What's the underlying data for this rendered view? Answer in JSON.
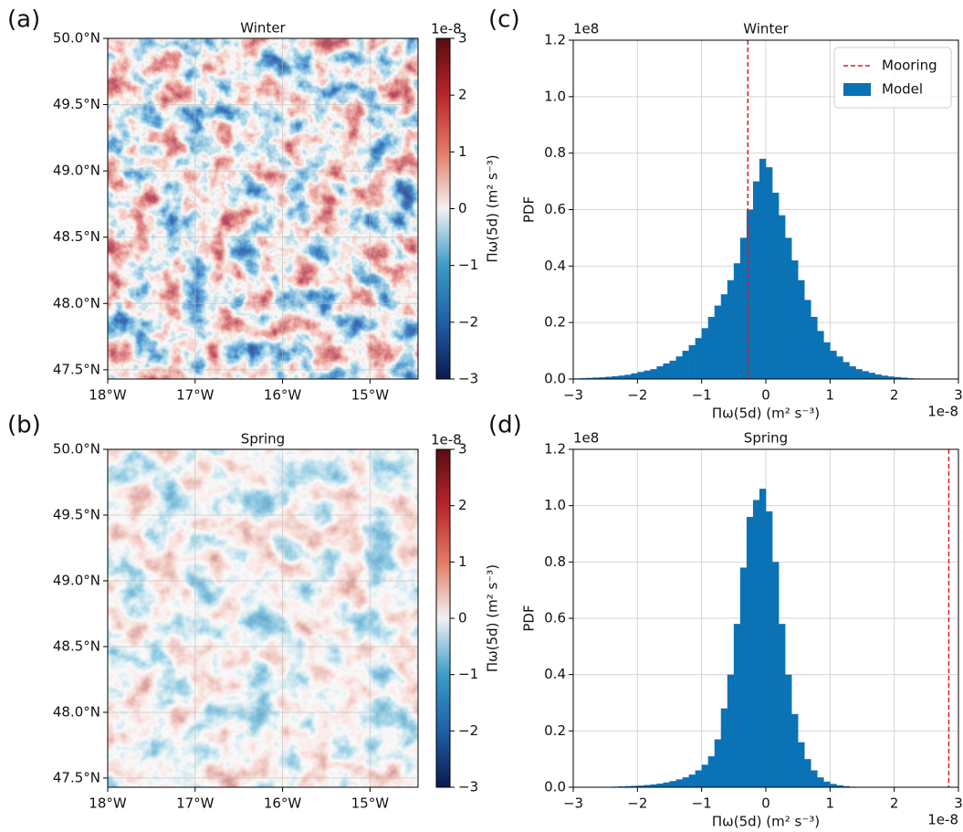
{
  "chart_data": [
    {
      "type": "heatmap",
      "panel_label": "(a)",
      "title": "Winter",
      "xlim": [
        -18,
        -14.45
      ],
      "ylim": [
        47.43,
        50.0
      ],
      "xticks": [
        {
          "value": -18,
          "label": "18°W"
        },
        {
          "value": -17,
          "label": "17°W"
        },
        {
          "value": -16,
          "label": "16°W"
        },
        {
          "value": -15,
          "label": "15°W"
        }
      ],
      "yticks": [
        {
          "value": 47.5,
          "label": "47.5°N"
        },
        {
          "value": 48.0,
          "label": "48.0°N"
        },
        {
          "value": 48.5,
          "label": "48.5°N"
        },
        {
          "value": 49.0,
          "label": "49.0°N"
        },
        {
          "value": 49.5,
          "label": "49.5°N"
        },
        {
          "value": 50.0,
          "label": "50.0°N"
        }
      ],
      "grid": true,
      "colorbar": {
        "lim": [
          -3,
          3
        ],
        "ticks": [
          {
            "value": -3,
            "label": "−3"
          },
          {
            "value": -2,
            "label": "−2"
          },
          {
            "value": -1,
            "label": "−1"
          },
          0,
          1,
          2,
          3
        ],
        "offset_label": "1e-8",
        "label": "Πω(5d) (m² s⁻³)",
        "colors": [
          "#0c1a4f",
          "#1f5fa8",
          "#3a9cc7",
          "#f2f2f2",
          "#e47a63",
          "#b8262b",
          "#5a0c12"
        ]
      }
    },
    {
      "type": "heatmap",
      "panel_label": "(b)",
      "title": "Spring",
      "xlim": [
        -18,
        -14.45
      ],
      "ylim": [
        47.43,
        50.0
      ],
      "xticks": [
        {
          "value": -18,
          "label": "18°W"
        },
        {
          "value": -17,
          "label": "17°W"
        },
        {
          "value": -16,
          "label": "16°W"
        },
        {
          "value": -15,
          "label": "15°W"
        }
      ],
      "yticks": [
        {
          "value": 47.5,
          "label": "47.5°N"
        },
        {
          "value": 48.0,
          "label": "48.0°N"
        },
        {
          "value": 48.5,
          "label": "48.5°N"
        },
        {
          "value": 49.0,
          "label": "49.0°N"
        },
        {
          "value": 49.5,
          "label": "49.5°N"
        },
        {
          "value": 50.0,
          "label": "50.0°N"
        }
      ],
      "grid": true,
      "colorbar": {
        "lim": [
          -3,
          3
        ],
        "ticks": [
          {
            "value": -3,
            "label": "−3"
          },
          {
            "value": -2,
            "label": "−2"
          },
          {
            "value": -1,
            "label": "−1"
          },
          0,
          1,
          2,
          3
        ],
        "offset_label": "1e-8",
        "label": "Πω(5d) (m² s⁻³)",
        "colors": [
          "#0c1a4f",
          "#1f5fa8",
          "#3a9cc7",
          "#f2f2f2",
          "#e47a63",
          "#b8262b",
          "#5a0c12"
        ]
      }
    },
    {
      "type": "histogram",
      "panel_label": "(c)",
      "title": "Winter",
      "xlabel": "Πω(5d) (m² s⁻³)",
      "ylabel": "PDF",
      "x_offset_label": "1e-8",
      "y_offset_label": "1e8",
      "xlim": [
        -3,
        3
      ],
      "ylim": [
        0,
        1.2
      ],
      "xticks": [
        {
          "value": -3,
          "label": "−3"
        },
        {
          "value": -2,
          "label": "−2"
        },
        {
          "value": -1,
          "label": "−1"
        },
        0,
        1,
        2,
        3
      ],
      "yticks": [
        {
          "value": 0,
          "label": "0.0"
        },
        0.2,
        0.4,
        0.6,
        0.8,
        {
          "value": 1,
          "label": "1.0"
        },
        1.2
      ],
      "grid": true,
      "legend": "upper right",
      "bins": [
        -3,
        -2.9,
        -2.8,
        -2.7,
        -2.6,
        -2.5,
        -2.4,
        -2.3,
        -2.2,
        -2.1,
        -2,
        -1.9,
        -1.8,
        -1.7,
        -1.6,
        -1.5,
        -1.4,
        -1.3,
        -1.2,
        -1.1,
        -1,
        -0.9,
        -0.8,
        -0.7,
        -0.6,
        -0.5,
        -0.4,
        -0.3,
        -0.2,
        -0.1,
        0,
        0.1,
        0.2,
        0.3,
        0.4,
        0.5,
        0.6,
        0.7,
        0.8,
        0.9,
        1,
        1.1,
        1.2,
        1.3,
        1.4,
        1.5,
        1.6,
        1.7,
        1.8,
        1.9,
        2,
        2.1,
        2.2,
        2.3,
        2.4,
        2.5,
        2.6,
        2.7,
        2.8,
        2.9,
        3
      ],
      "series": [
        {
          "name": "Model",
          "color": "#0a72b5",
          "values": [
            0.002,
            0.003,
            0.004,
            0.005,
            0.006,
            0.008,
            0.01,
            0.012,
            0.015,
            0.02,
            0.025,
            0.03,
            0.035,
            0.045,
            0.055,
            0.065,
            0.08,
            0.1,
            0.12,
            0.145,
            0.18,
            0.22,
            0.26,
            0.3,
            0.35,
            0.41,
            0.5,
            0.6,
            0.7,
            0.78,
            0.75,
            0.66,
            0.58,
            0.5,
            0.42,
            0.35,
            0.28,
            0.22,
            0.17,
            0.13,
            0.1,
            0.08,
            0.06,
            0.045,
            0.035,
            0.028,
            0.022,
            0.016,
            0.012,
            0.009,
            0.007,
            0.005,
            0.003,
            0.002,
            0,
            0,
            0,
            0,
            0,
            0
          ]
        }
      ],
      "lines": [
        {
          "name": "Mooring",
          "color": "#e41a1c",
          "x": -0.28
        }
      ]
    },
    {
      "type": "histogram",
      "panel_label": "(d)",
      "title": "Spring",
      "xlabel": "Πω(5d) (m² s⁻³)",
      "ylabel": "PDF",
      "x_offset_label": "1e-8",
      "y_offset_label": "1e8",
      "xlim": [
        -3,
        3
      ],
      "ylim": [
        0,
        1.2
      ],
      "xticks": [
        {
          "value": -3,
          "label": "−3"
        },
        {
          "value": -2,
          "label": "−2"
        },
        {
          "value": -1,
          "label": "−1"
        },
        0,
        1,
        2,
        3
      ],
      "yticks": [
        {
          "value": 0,
          "label": "0.0"
        },
        0.2,
        0.4,
        0.6,
        0.8,
        {
          "value": 1,
          "label": "1.0"
        },
        1.2
      ],
      "grid": true,
      "bins": [
        -3,
        -2.9,
        -2.8,
        -2.7,
        -2.6,
        -2.5,
        -2.4,
        -2.3,
        -2.2,
        -2.1,
        -2,
        -1.9,
        -1.8,
        -1.7,
        -1.6,
        -1.5,
        -1.4,
        -1.3,
        -1.2,
        -1.1,
        -1,
        -0.9,
        -0.8,
        -0.7,
        -0.6,
        -0.5,
        -0.4,
        -0.3,
        -0.2,
        -0.1,
        0,
        0.1,
        0.2,
        0.3,
        0.4,
        0.5,
        0.6,
        0.7,
        0.8,
        0.9,
        1,
        1.1,
        1.2,
        1.3,
        1.4,
        1.5,
        1.6,
        1.7,
        1.8,
        1.9,
        2,
        2.1,
        2.2,
        2.3,
        2.4,
        2.5,
        2.6,
        2.7,
        2.8,
        2.9,
        3
      ],
      "series": [
        {
          "color": "#0a72b5",
          "values": [
            0,
            0,
            0,
            0,
            0,
            0.001,
            0.002,
            0.003,
            0.004,
            0.005,
            0.006,
            0.008,
            0.01,
            0.013,
            0.017,
            0.022,
            0.028,
            0.035,
            0.045,
            0.06,
            0.08,
            0.11,
            0.17,
            0.28,
            0.4,
            0.58,
            0.78,
            0.96,
            1.02,
            1.06,
            0.98,
            0.8,
            0.58,
            0.4,
            0.26,
            0.16,
            0.1,
            0.06,
            0.035,
            0.02,
            0.012,
            0.007,
            0.004,
            0.002,
            0.001,
            0,
            0,
            0,
            0,
            0,
            0,
            0,
            0,
            0,
            0,
            0,
            0,
            0,
            0,
            0
          ]
        }
      ],
      "lines": [
        {
          "color": "#e41a1c",
          "x": 2.85
        }
      ]
    }
  ]
}
